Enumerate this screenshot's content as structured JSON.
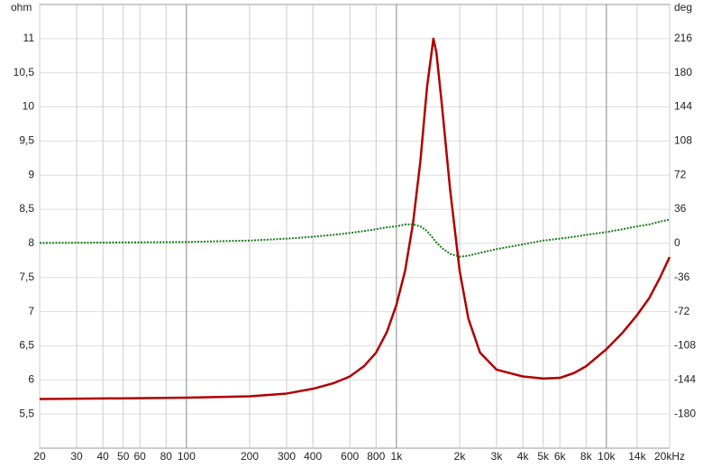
{
  "chart_data": {
    "type": "line",
    "y_axis_label": "ohm",
    "y2_axis_label": "deg",
    "log_x": true,
    "grid": true,
    "xlim": [
      20,
      20000
    ],
    "xticks": [
      20,
      30,
      40,
      50,
      60,
      80,
      100,
      200,
      300,
      400,
      600,
      800,
      {
        "value": 1000,
        "label": "1k"
      },
      {
        "value": 2000,
        "label": "2k"
      },
      {
        "value": 3000,
        "label": "3k"
      },
      {
        "value": 4000,
        "label": "4k"
      },
      {
        "value": 5000,
        "label": "5k"
      },
      {
        "value": 6000,
        "label": "6k"
      },
      {
        "value": 8000,
        "label": "8k"
      },
      {
        "value": 10000,
        "label": "10k"
      },
      {
        "value": 14000,
        "label": "14k"
      },
      {
        "value": 20000,
        "label": "20kHz"
      }
    ],
    "ylim": [
      5,
      11.5
    ],
    "yticks": [
      {
        "value": 5.5,
        "label": "5,5"
      },
      6,
      {
        "value": 6.5,
        "label": "6,5"
      },
      7,
      {
        "value": 7.5,
        "label": "7,5"
      },
      8,
      {
        "value": 8.5,
        "label": "8,5"
      },
      9,
      {
        "value": 9.5,
        "label": "9,5"
      },
      10,
      {
        "value": 10.5,
        "label": "10,5"
      },
      11
    ],
    "y2lim": [
      -216,
      252
    ],
    "y2ticks": [
      -180,
      -144,
      -108,
      -72,
      -36,
      0,
      36,
      72,
      108,
      144,
      180,
      216
    ],
    "x": [
      20,
      50,
      100,
      200,
      300,
      400,
      500,
      600,
      700,
      800,
      900,
      1000,
      1100,
      1200,
      1300,
      1400,
      1500,
      1550,
      1650,
      1800,
      2000,
      2200,
      2500,
      3000,
      4000,
      5000,
      6000,
      7000,
      8000,
      10000,
      12000,
      14000,
      16000,
      18000,
      20000
    ],
    "series": [
      {
        "color": "#b00000",
        "values": [
          5.72,
          5.73,
          5.74,
          5.76,
          5.8,
          5.87,
          5.95,
          6.05,
          6.2,
          6.4,
          6.7,
          7.1,
          7.6,
          8.3,
          9.2,
          10.3,
          11.0,
          10.8,
          10.0,
          8.8,
          7.6,
          6.9,
          6.4,
          6.15,
          6.05,
          6.02,
          6.03,
          6.1,
          6.2,
          6.45,
          6.7,
          6.95,
          7.2,
          7.5,
          7.8
        ]
      },
      {
        "color": "#1a7a1a",
        "axis": "y2",
        "values": [
          0.5,
          1,
          1.5,
          3,
          5,
          7,
          9,
          11,
          13,
          15,
          17,
          18,
          20,
          20,
          18,
          13,
          5,
          1,
          -5,
          -11,
          -14,
          -13,
          -10,
          -6,
          -1,
          3,
          5,
          7,
          9,
          12,
          15,
          18,
          20,
          23,
          25
        ]
      }
    ]
  }
}
